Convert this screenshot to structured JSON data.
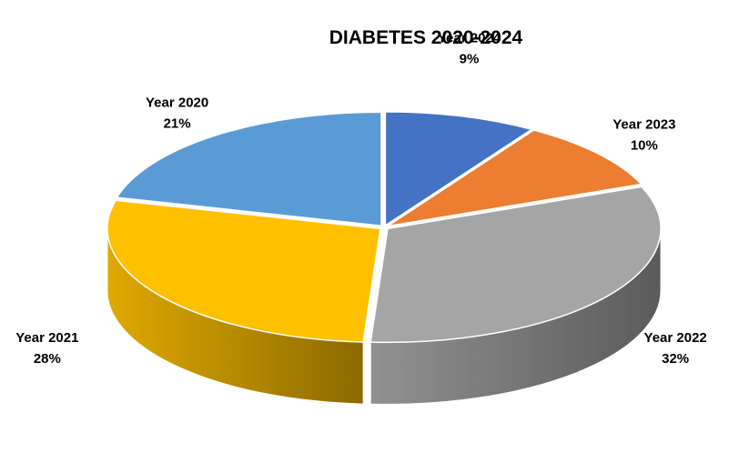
{
  "chart_data": {
    "type": "pie",
    "title": "DIABETES 2020-2024",
    "three_d": true,
    "slices": [
      {
        "name": "Year 2024",
        "value": 9,
        "label": "9%",
        "color": "#4472C4"
      },
      {
        "name": "Year 2023",
        "value": 10,
        "label": "10%",
        "color": "#ED7D31"
      },
      {
        "name": "Year 2022",
        "value": 32,
        "label": "32%",
        "color": "#A5A5A5"
      },
      {
        "name": "Year 2021",
        "value": 28,
        "label": "28%",
        "color": "#FFC000"
      },
      {
        "name": "Year 2020",
        "value": 21,
        "label": "21%",
        "color": "#5B9BD5"
      }
    ],
    "legend": "none",
    "grid": false
  }
}
